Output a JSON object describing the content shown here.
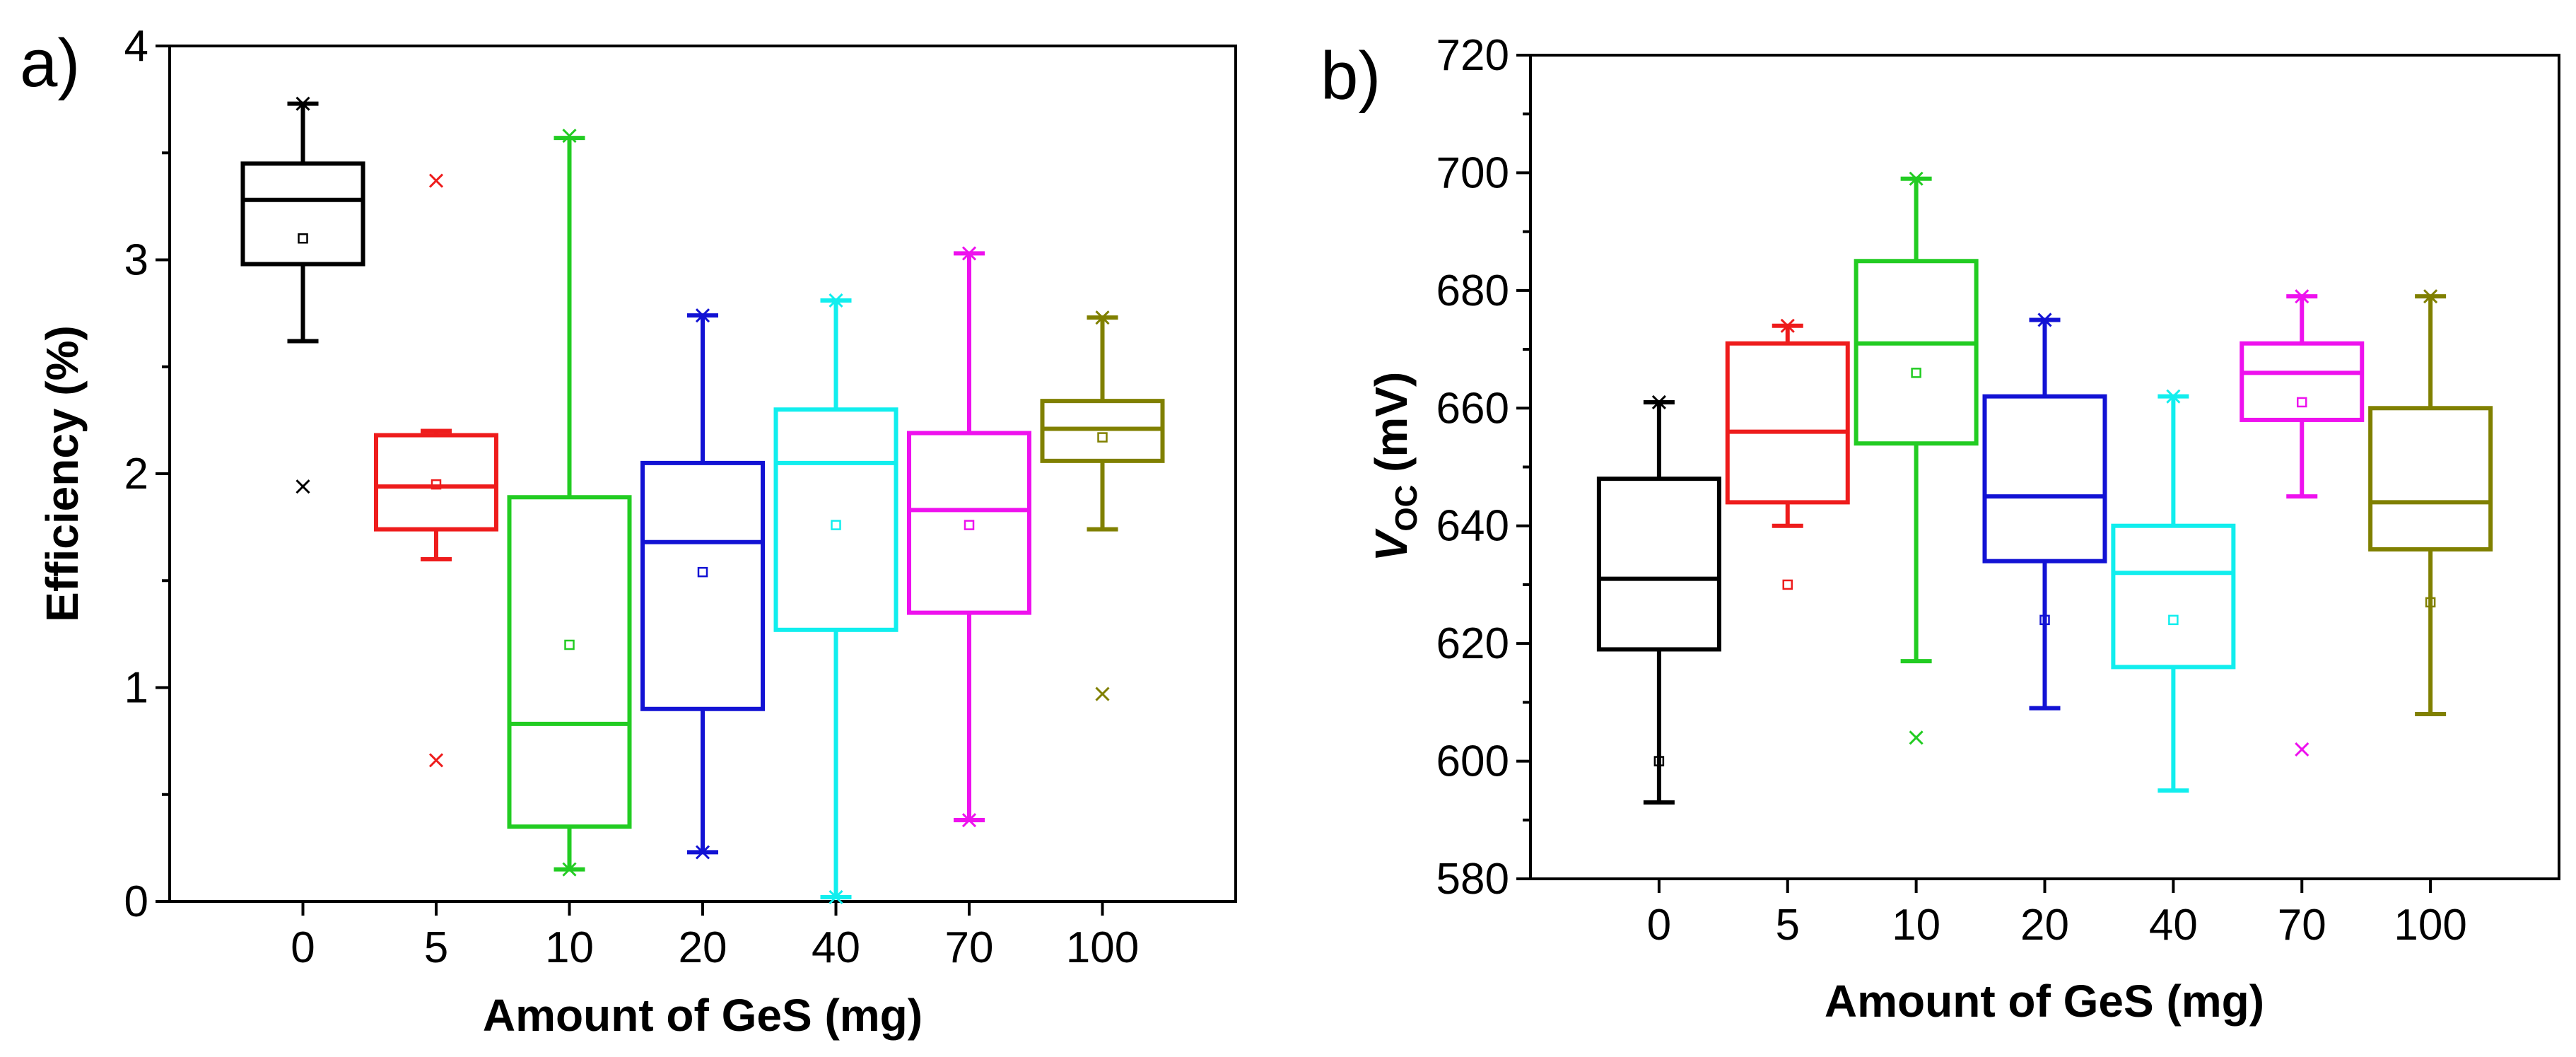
{
  "chart_data": [
    {
      "type": "box",
      "panel_label": "a)",
      "xlabel": "Amount of GeS (mg)",
      "ylabel": "Efficiency (%)",
      "ylim": [
        0,
        4
      ],
      "yticks": [
        0,
        1,
        2,
        3,
        4
      ],
      "categories": [
        "0",
        "5",
        "10",
        "20",
        "40",
        "70",
        "100"
      ],
      "boxes": [
        {
          "category": "0",
          "color": "#000000",
          "whisker_low": 2.62,
          "q1": 2.98,
          "median": 3.28,
          "q3": 3.45,
          "whisker_high": 3.73,
          "mean": 3.1,
          "outliers": [
            1.94,
            3.73
          ]
        },
        {
          "category": "5",
          "color": "#ee1c1c",
          "whisker_low": 1.6,
          "q1": 1.74,
          "median": 1.94,
          "q3": 2.18,
          "whisker_high": 2.2,
          "mean": 1.95,
          "outliers": [
            0.66,
            3.37
          ]
        },
        {
          "category": "10",
          "color": "#22cc22",
          "whisker_low": 0.15,
          "q1": 0.35,
          "median": 0.83,
          "q3": 1.89,
          "whisker_high": 3.57,
          "mean": 1.2,
          "outliers": [
            0.15,
            3.58
          ]
        },
        {
          "category": "20",
          "color": "#1212d4",
          "whisker_low": 0.23,
          "q1": 0.9,
          "median": 1.68,
          "q3": 2.05,
          "whisker_high": 2.74,
          "mean": 1.54,
          "outliers": [
            0.23,
            2.74
          ]
        },
        {
          "category": "40",
          "color": "#11eeee",
          "whisker_low": 0.02,
          "q1": 1.27,
          "median": 2.05,
          "q3": 2.3,
          "whisker_high": 2.81,
          "mean": 1.76,
          "outliers": [
            0.02,
            2.81
          ]
        },
        {
          "category": "70",
          "color": "#ee11ee",
          "whisker_low": 0.38,
          "q1": 1.35,
          "median": 1.83,
          "q3": 2.19,
          "whisker_high": 3.03,
          "mean": 1.76,
          "outliers": [
            0.38,
            3.03
          ]
        },
        {
          "category": "100",
          "color": "#808000",
          "whisker_low": 1.74,
          "q1": 2.06,
          "median": 2.21,
          "q3": 2.34,
          "whisker_high": 2.73,
          "mean": 2.17,
          "outliers": [
            0.97,
            2.73
          ]
        }
      ]
    },
    {
      "type": "box",
      "panel_label": "b)",
      "xlabel": "Amount of GeS (mg)",
      "ylabel_main": "V",
      "ylabel_sub": "OC",
      "ylabel_unit": " (mV)",
      "ylim": [
        580,
        720
      ],
      "yticks": [
        580,
        600,
        620,
        640,
        660,
        680,
        700,
        720
      ],
      "categories": [
        "0",
        "5",
        "10",
        "20",
        "40",
        "70",
        "100"
      ],
      "boxes": [
        {
          "category": "0",
          "color": "#000000",
          "whisker_low": 593,
          "q1": 619,
          "median": 631,
          "q3": 648,
          "whisker_high": 661,
          "mean": 600,
          "outliers": [
            661
          ]
        },
        {
          "category": "5",
          "color": "#ee1c1c",
          "whisker_low": 640,
          "q1": 644,
          "median": 656,
          "q3": 671,
          "whisker_high": 674,
          "mean": 630,
          "outliers": [
            674
          ]
        },
        {
          "category": "10",
          "color": "#22cc22",
          "whisker_low": 617,
          "q1": 654,
          "median": 671,
          "q3": 685,
          "whisker_high": 699,
          "mean": 666,
          "outliers": [
            604,
            699
          ]
        },
        {
          "category": "20",
          "color": "#1212d4",
          "whisker_low": 609,
          "q1": 634,
          "median": 645,
          "q3": 662,
          "whisker_high": 675,
          "mean": 624,
          "outliers": [
            675
          ]
        },
        {
          "category": "40",
          "color": "#11eeee",
          "whisker_low": 595,
          "q1": 616,
          "median": 632,
          "q3": 640,
          "whisker_high": 662,
          "mean": 624,
          "outliers": [
            662
          ]
        },
        {
          "category": "70",
          "color": "#ee11ee",
          "whisker_low": 645,
          "q1": 658,
          "median": 666,
          "q3": 671,
          "whisker_high": 679,
          "mean": 661,
          "outliers": [
            602,
            679
          ]
        },
        {
          "category": "100",
          "color": "#808000",
          "whisker_low": 608,
          "q1": 636,
          "median": 644,
          "q3": 660,
          "whisker_high": 679,
          "mean": 627,
          "outliers": [
            679
          ]
        }
      ]
    }
  ]
}
